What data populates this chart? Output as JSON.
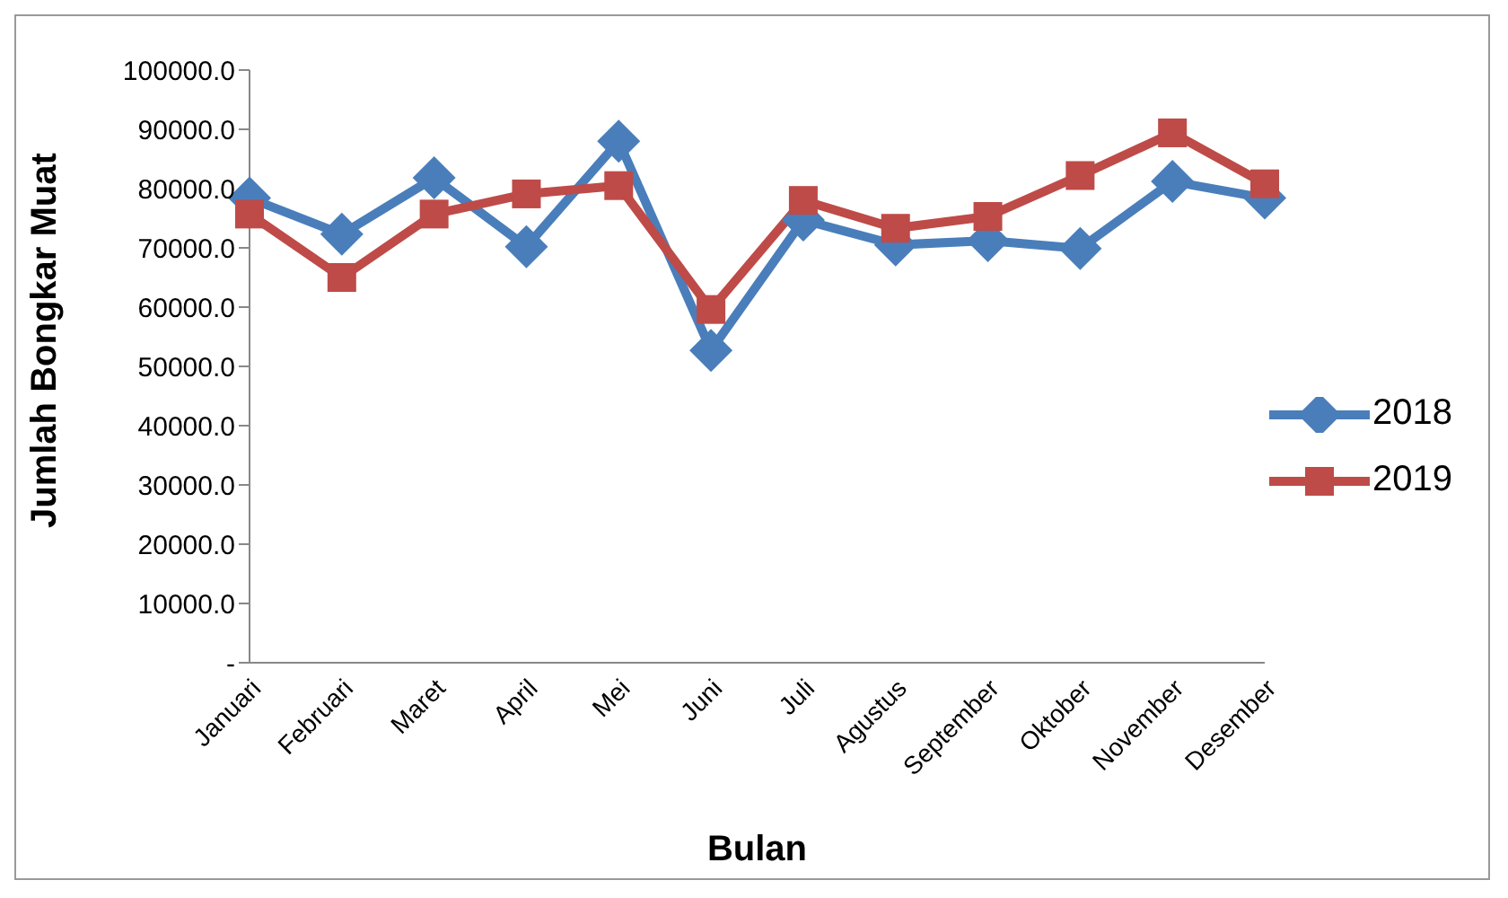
{
  "chart_data": {
    "type": "line",
    "xlabel": "Bulan",
    "ylabel": "Jumlah Bongkar Muat",
    "categories": [
      "Januari",
      "Februari",
      "Maret",
      "April",
      "Mei",
      "Juni",
      "Juli",
      "Agustus",
      "September",
      "Oktober",
      "November",
      "Desember"
    ],
    "series": [
      {
        "name": "2018",
        "color": "#4a7ebb",
        "marker": "diamond",
        "values": [
          78400,
          72300,
          81800,
          70200,
          88000,
          52700,
          74700,
          70500,
          71200,
          69900,
          81200,
          78400
        ]
      },
      {
        "name": "2019",
        "color": "#be4b48",
        "marker": "square",
        "values": [
          75700,
          65000,
          75700,
          79100,
          80500,
          59600,
          78000,
          73300,
          75300,
          82200,
          89400,
          80800
        ]
      }
    ],
    "ylim": [
      0,
      100000
    ],
    "yticks": [
      {
        "value": 0,
        "label": "-"
      },
      {
        "value": 10000,
        "label": "10000.0"
      },
      {
        "value": 20000,
        "label": "20000.0"
      },
      {
        "value": 30000,
        "label": "30000.0"
      },
      {
        "value": 40000,
        "label": "40000.0"
      },
      {
        "value": 50000,
        "label": "50000.0"
      },
      {
        "value": 60000,
        "label": "60000.0"
      },
      {
        "value": 70000,
        "label": "70000.0"
      },
      {
        "value": 80000,
        "label": "80000.0"
      },
      {
        "value": 90000,
        "label": "90000.0"
      },
      {
        "value": 100000,
        "label": "100000.0"
      }
    ],
    "grid": false,
    "legend": "right"
  }
}
